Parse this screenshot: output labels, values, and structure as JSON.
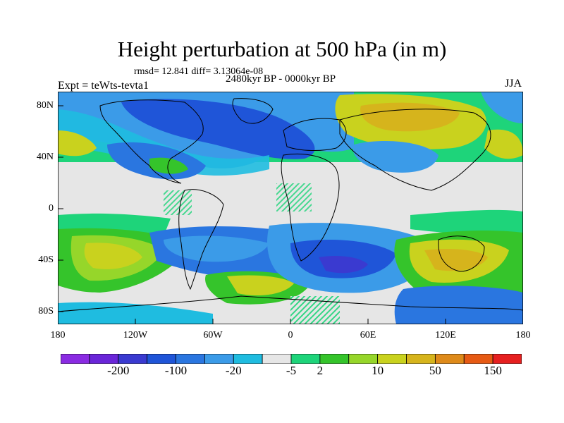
{
  "title": "Height perturbation at 500 hPa (in m)",
  "stats_text": "rmsd= 12.841 diff= 3.13064e-08",
  "period_text": "2480kyr BP - 0000kyr BP",
  "experiment_text": "Expt = teWts-tevta1",
  "season_text": "JJA",
  "x_ticks": [
    "180",
    "120W",
    "60W",
    "0",
    "60E",
    "120E",
    "180"
  ],
  "y_ticks": [
    "80N",
    "40N",
    "0",
    "40S",
    "80S"
  ],
  "colorbar": {
    "colors": [
      "#8a2be2",
      "#6a26d8",
      "#3a3ad0",
      "#1f55d8",
      "#2a76e0",
      "#3b9be8",
      "#1fbce0",
      "#e6e6e6",
      "#1ed47a",
      "#35c42b",
      "#96d62a",
      "#c9d21e",
      "#d6b41c",
      "#de8a1a",
      "#e65a14",
      "#e62020"
    ],
    "labels": [
      "-200",
      "-100",
      "-20",
      "-5",
      "2",
      "10",
      "50",
      "150"
    ]
  },
  "map_colors": {
    "ocean_neutral": "#e6e6e6",
    "deep_blue": "#1f55d8",
    "mid_blue": "#3b9be8",
    "light_blue": "#1fbce0",
    "green": "#1ed47a",
    "lime": "#96d62a",
    "yellow": "#c9d21e",
    "orange": "#d6b41c"
  }
}
